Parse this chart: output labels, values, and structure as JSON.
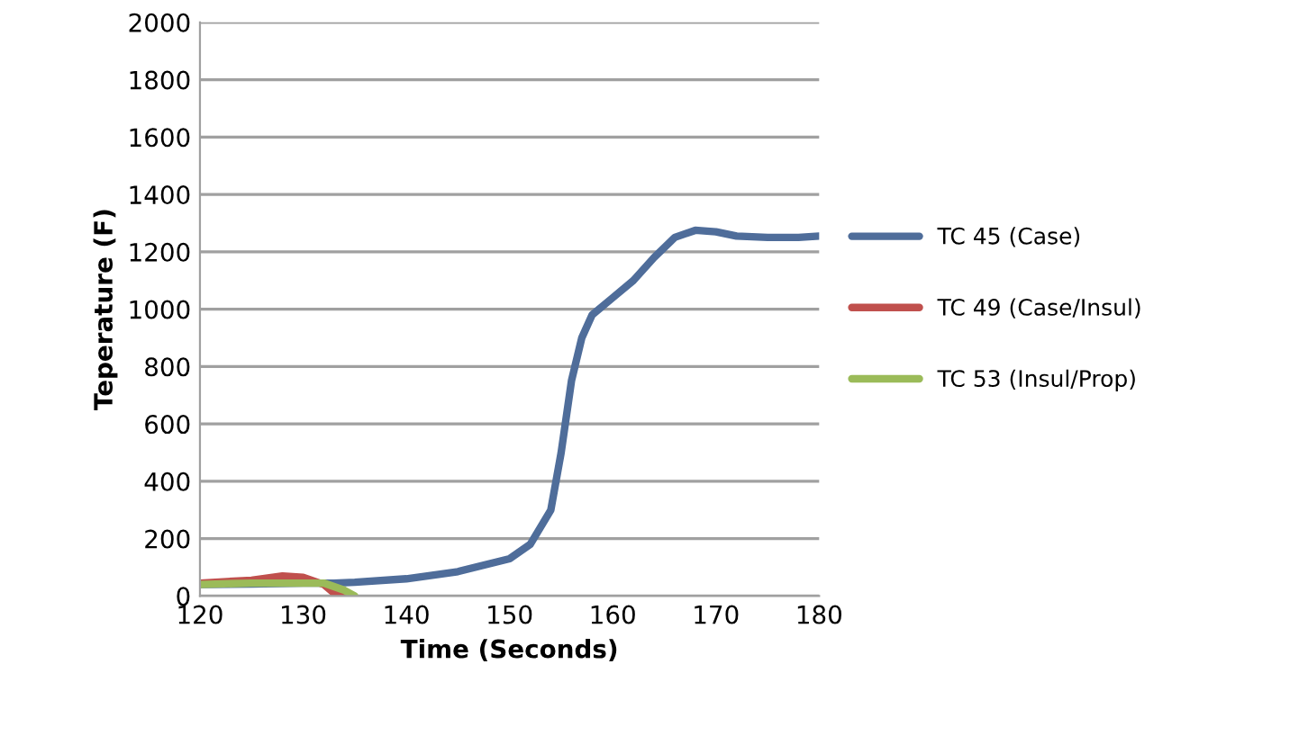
{
  "chart_data": {
    "type": "line",
    "xlabel": "Time (Seconds)",
    "ylabel": "Teperature (F)",
    "xlim": [
      120,
      180
    ],
    "xticks": [
      120,
      130,
      140,
      150,
      160,
      170,
      180
    ],
    "ylim": [
      0,
      2000
    ],
    "yticks": [
      0,
      200,
      400,
      600,
      800,
      1000,
      1200,
      1400,
      1600,
      1800,
      2000
    ],
    "grid": "y",
    "legend": "right",
    "series": [
      {
        "name": "TC 45 (Case)",
        "color": "#4f6d9a",
        "x": [
          120,
          125,
          130,
          133,
          135,
          140,
          145,
          150,
          152,
          154,
          155,
          156,
          157,
          158,
          160,
          162,
          164,
          166,
          168,
          170,
          172,
          175,
          178,
          180
        ],
        "values": [
          40,
          42,
          45,
          45,
          48,
          60,
          85,
          130,
          180,
          300,
          500,
          750,
          900,
          980,
          1040,
          1100,
          1180,
          1250,
          1275,
          1270,
          1255,
          1250,
          1250,
          1255
        ]
      },
      {
        "name": "TC 49 (Case/Insul)",
        "color": "#c0504d",
        "x": [
          120,
          125,
          128,
          130,
          132,
          133,
          134
        ],
        "values": [
          45,
          55,
          70,
          65,
          40,
          10,
          0
        ]
      },
      {
        "name": "TC 53 (Insul/Prop)",
        "color": "#9bbb59",
        "x": [
          120,
          125,
          130,
          132,
          134,
          135
        ],
        "values": [
          40,
          45,
          45,
          45,
          20,
          0
        ]
      }
    ]
  }
}
